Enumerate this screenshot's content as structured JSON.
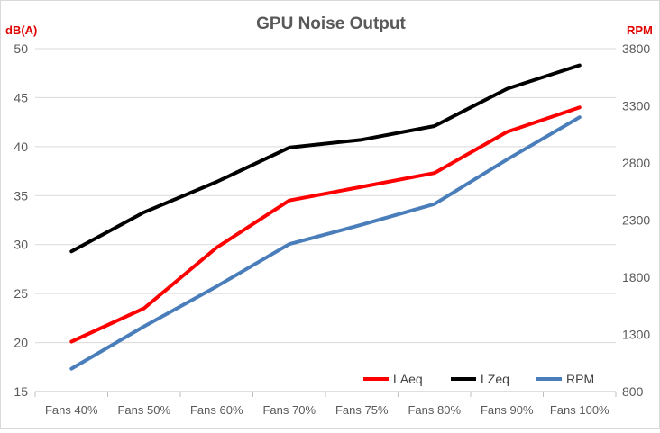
{
  "chart_data": {
    "type": "line",
    "title": "GPU Noise Output",
    "ylabel": "dB(A)",
    "y2label": "RPM",
    "categories": [
      "Fans 40%",
      "Fans 50%",
      "Fans 60%",
      "Fans 70%",
      "Fans 75%",
      "Fans 80%",
      "Fans 90%",
      "Fans 100%"
    ],
    "ylim": [
      15,
      50
    ],
    "yticks": [
      "15",
      "20",
      "25",
      "30",
      "35",
      "40",
      "45",
      "50"
    ],
    "y2lim": [
      800,
      3800
    ],
    "y2ticks": [
      "800",
      "1300",
      "1800",
      "2300",
      "2800",
      "3300",
      "3800"
    ],
    "series": [
      {
        "name": "LAeq",
        "axis": "left",
        "color": "#ff0000",
        "values": [
          20.1,
          23.5,
          29.7,
          34.5,
          35.9,
          37.3,
          41.5,
          44.0
        ]
      },
      {
        "name": "LZeq",
        "axis": "left",
        "color": "#000000",
        "values": [
          29.3,
          33.3,
          36.4,
          39.9,
          40.7,
          42.1,
          45.9,
          48.3
        ]
      },
      {
        "name": "RPM",
        "axis": "right",
        "color": "#4a7ebb",
        "values": [
          1000,
          1370,
          1720,
          2090,
          2260,
          2440,
          2830,
          3200
        ]
      }
    ],
    "grid": true,
    "legend": "bottom-right",
    "axis_label_color": "#e00000"
  }
}
